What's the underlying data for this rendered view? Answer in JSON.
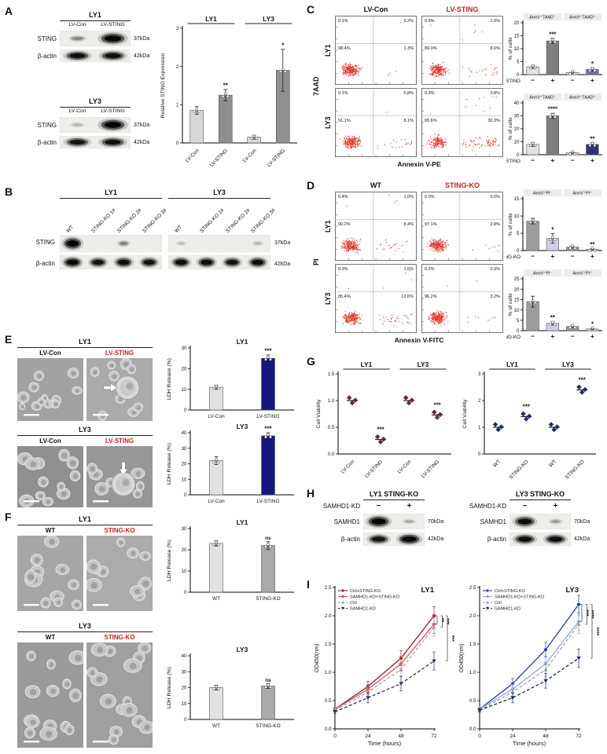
{
  "colors": {
    "accent_red": "#c32222",
    "navy_bar": "#17177d",
    "purple_bar": "#7a68b0",
    "dark_navy_bar": "#31317e",
    "flow_dot": "#ef3b30"
  },
  "A": {
    "label": "A",
    "blots": [
      {
        "title": "LY1",
        "lanes": [
          "LV-Con",
          "LV-STING"
        ],
        "rows": [
          {
            "protein": "STING",
            "kda": "37kDa",
            "intensities": [
              0.3,
              1
            ]
          },
          {
            "protein": "β-actin",
            "kda": "42kDa",
            "intensities": [
              0.9,
              0.9
            ]
          }
        ]
      },
      {
        "title": "LY3",
        "lanes": [
          "LV-Con",
          "LV-STING"
        ],
        "rows": [
          {
            "protein": "STING",
            "kda": "37kDa",
            "intensities": [
              0.15,
              1
            ]
          },
          {
            "protein": "β-actin",
            "kda": "42kDa",
            "intensities": [
              0.85,
              0.9
            ]
          }
        ]
      }
    ],
    "chart": {
      "type": "bar",
      "ylabel": "Relative STING Expression",
      "ylim": [
        0,
        3
      ],
      "yticks": [
        "0",
        "1",
        "2",
        "3"
      ],
      "group_titles": [
        "LY1",
        "LY3"
      ],
      "categories": [
        "LV-Con",
        "LV-STING",
        "LV-Con",
        "LV-STING"
      ],
      "rotate_categories": true,
      "values": [
        0.85,
        1.25,
        0.15,
        1.9
      ],
      "errors": [
        0.1,
        0.15,
        0.05,
        0.55
      ],
      "sig": [
        "",
        "**",
        "",
        "*"
      ],
      "bar_colors": [
        "#d8d8d8",
        "#8f8f8f",
        "#d8d8d8",
        "#8f8f8f"
      ],
      "dots": true
    }
  },
  "B": {
    "label": "B",
    "row_labels": [
      {
        "protein": "STING",
        "kda": "37kDa"
      },
      {
        "protein": "β-actin",
        "kda": "42kDa"
      }
    ],
    "groups": [
      {
        "title": "LY1",
        "lanes": [
          "WT",
          "STING-KO 1#",
          "STING-KO 2#",
          "STING-KO 3#"
        ],
        "sting": [
          1,
          0,
          0.3,
          0
        ],
        "actin": [
          0.95,
          0.85,
          0.9,
          0.85
        ]
      },
      {
        "title": "LY3",
        "lanes": [
          "WT",
          "STING-KO 1#",
          "STING-KO 2#",
          "STING-KO 3#"
        ],
        "sting": [
          0.12,
          0,
          0,
          0.15
        ],
        "actin": [
          0.9,
          0.9,
          0.85,
          0.9
        ]
      }
    ]
  },
  "C": {
    "label": "C",
    "columns": [
      {
        "label": "LV-Con",
        "red": false
      },
      {
        "label": "LV-STING",
        "red": true
      }
    ],
    "rows": [
      "LY1",
      "LY3"
    ],
    "yaxis": "7AAD",
    "xaxis": "Annexin V-PE",
    "plots": [
      {
        "quadrants": [
          "0.1%",
          "0.2%",
          "98.4%",
          "1.3%"
        ]
      },
      {
        "quadrants": [
          "0.5%",
          "1.9%",
          "89.0%",
          "8.6%"
        ]
      },
      {
        "quadrants": [
          "0.1%",
          "0.8%",
          "91.1%",
          "8.1%"
        ]
      },
      {
        "quadrants": [
          "0.3%",
          "3.8%",
          "65.6%",
          "30.3%"
        ]
      }
    ],
    "charts": [
      {
        "type": "bar",
        "pair_titles": [
          "AnnV⁺7AAD⁻",
          "AnnV⁺7AAD⁺"
        ],
        "ylabel": "% of cells",
        "ylim": [
          0,
          20
        ],
        "yticks": [
          "0",
          "5",
          "10",
          "15",
          "20"
        ],
        "xlabel_left": "LV-STING",
        "xsyms": [
          "−",
          "+",
          "−",
          "+"
        ],
        "values": [
          3,
          13,
          0.8,
          2
        ],
        "errors": [
          0.6,
          1,
          0.3,
          0.6
        ],
        "sig": [
          "",
          "***",
          "",
          "*"
        ],
        "bar_colors": [
          "#e2e2e2",
          "#7d7d7d",
          "#e2e2e2",
          "#7a68b0"
        ],
        "dots": true
      },
      {
        "type": "bar",
        "pair_titles": [
          "AnnV⁺7AAD⁻",
          "AnnV⁺7AAD⁺"
        ],
        "ylabel": "% of cells",
        "ylim": [
          0,
          40
        ],
        "yticks": [
          "0",
          "10",
          "20",
          "30",
          "40"
        ],
        "xlabel_left": "LV-STING",
        "xsyms": [
          "−",
          "+",
          "−",
          "+"
        ],
        "values": [
          8,
          30,
          1.5,
          8
        ],
        "errors": [
          1.5,
          2,
          0.5,
          1.2
        ],
        "sig": [
          "",
          "****",
          "",
          "**"
        ],
        "bar_colors": [
          "#e2e2e2",
          "#7d7d7d",
          "#e2e2e2",
          "#31317e"
        ],
        "dots": true
      }
    ]
  },
  "D": {
    "label": "D",
    "columns": [
      {
        "label": "WT",
        "red": false
      },
      {
        "label": "STING-KO",
        "red": true
      }
    ],
    "rows": [
      "LY1",
      "LY3"
    ],
    "yaxis": "PI",
    "xaxis": "Annexin V-FITC",
    "plots": [
      {
        "quadrants": [
          "0.4%",
          "1.0%",
          "90.2%",
          "8.4%"
        ]
      },
      {
        "quadrants": [
          "0.0%",
          "0.0%",
          "97.1%",
          "2.8%"
        ]
      },
      {
        "quadrants": [
          "0.3%",
          "1.6%",
          "85.4%",
          "12.6%"
        ]
      },
      {
        "quadrants": [
          "0.2%",
          "0.3%",
          "96.2%",
          "3.2%"
        ]
      }
    ],
    "charts": [
      {
        "type": "bar",
        "pair_titles": [
          "AnnV⁺PI⁻",
          "AnnV⁺PI⁺"
        ],
        "ylabel": "% of cells",
        "ylim": [
          0,
          15
        ],
        "yticks": [
          "0",
          "5",
          "10",
          "15"
        ],
        "xlabel_left": "STING-KO",
        "xsyms": [
          "−",
          "+",
          "−",
          "+"
        ],
        "values": [
          8.5,
          3.5,
          1,
          0.4
        ],
        "errors": [
          0.8,
          1.4,
          0.3,
          0.2
        ],
        "sig": [
          "",
          "*",
          "",
          "**"
        ],
        "bar_colors": [
          "#9c9c9c",
          "#d4cbe9",
          "#9c9c9c",
          "#d4cbe9"
        ],
        "dots": true
      },
      {
        "type": "bar",
        "pair_titles": [
          "AnnV⁺PI⁻",
          "AnnV⁺PI⁺"
        ],
        "ylabel": "% of cells",
        "ylim": [
          0,
          25
        ],
        "yticks": [
          "0",
          "5",
          "10",
          "15",
          "20",
          "25"
        ],
        "xlabel_left": "STING-KO",
        "xsyms": [
          "−",
          "+",
          "−",
          "+"
        ],
        "values": [
          14,
          3.5,
          2,
          0.8
        ],
        "errors": [
          2.6,
          0.8,
          0.6,
          0.3
        ],
        "sig": [
          "",
          "**",
          "",
          "*"
        ],
        "bar_colors": [
          "#9c9c9c",
          "#d4cbe9",
          "#9c9c9c",
          "#d4cbe9"
        ],
        "dots": true
      }
    ]
  },
  "E": {
    "label": "E",
    "groups": [
      {
        "title": "LY1",
        "images": [
          {
            "label": "LV-Con",
            "red": false,
            "bg": "#a2a2a2",
            "cells": 13,
            "rmin": 4,
            "rmax": 7
          },
          {
            "label": "LV-STING",
            "red": true,
            "bg": "#aaaaaa",
            "cells": 9,
            "rmin": 4,
            "rmax": 7,
            "big": [
              0.62,
              0.47
            ],
            "arrow": "right",
            "arrow_at": [
              0.26,
              0.47
            ]
          }
        ],
        "chart": {
          "type": "bar",
          "title": "LY1",
          "ylabel": "LDH Release (%)",
          "ylim": [
            0,
            30
          ],
          "yticks": [
            "0",
            "10",
            "20",
            "30"
          ],
          "categories": [
            "LV-Con",
            "LV-STING"
          ],
          "values": [
            11,
            25
          ],
          "errors": [
            1,
            1.6
          ],
          "sig": [
            "",
            "***"
          ],
          "bar_colors": [
            "#e2e2e2",
            "#17177d"
          ],
          "dots": true
        }
      },
      {
        "title": "LY3",
        "images": [
          {
            "label": "LV-Con",
            "red": false,
            "bg": "#8f8f8f",
            "cells": 12,
            "rmin": 5,
            "rmax": 8
          },
          {
            "label": "LV-STING",
            "red": true,
            "bg": "#979797",
            "cells": 8,
            "rmin": 5,
            "rmax": 8,
            "big": [
              0.56,
              0.62
            ],
            "arrow": "down",
            "arrow_at": [
              0.56,
              0.26
            ]
          }
        ],
        "chart": {
          "type": "bar",
          "title": "LY3",
          "ylabel": "LDH Release (%)",
          "ylim": [
            0,
            40
          ],
          "yticks": [
            "0",
            "10",
            "20",
            "30",
            "40"
          ],
          "categories": [
            "LV-Con",
            "LV-STING"
          ],
          "values": [
            22,
            38
          ],
          "errors": [
            2.5,
            2
          ],
          "sig": [
            "",
            "***"
          ],
          "bar_colors": [
            "#e2e2e2",
            "#17177d"
          ],
          "dots": true
        }
      }
    ]
  },
  "F": {
    "label": "F",
    "groups": [
      {
        "title": "LY1",
        "images": [
          {
            "label": "WT",
            "red": false,
            "bg": "#a6a6a6",
            "cells": 11,
            "rmin": 5,
            "rmax": 9
          },
          {
            "label": "STING-KO",
            "red": true,
            "bg": "#ababab",
            "cells": 11,
            "rmin": 5,
            "rmax": 9
          }
        ],
        "chart": {
          "type": "bar",
          "title": "LY1",
          "ylabel": "LDH Release (%)",
          "ylim": [
            0,
            30
          ],
          "yticks": [
            "0",
            "10",
            "20",
            "30"
          ],
          "categories": [
            "WT",
            "STING-KO"
          ],
          "values": [
            23,
            22
          ],
          "errors": [
            1.2,
            1.8
          ],
          "sig": [
            "",
            "ns"
          ],
          "bar_colors": [
            "#e2e2e2",
            "#a9a9a9"
          ],
          "dots": true
        }
      },
      {
        "title": "LY3",
        "images": [
          {
            "label": "WT",
            "red": false,
            "bg": "#9a9a9a",
            "cells": 14,
            "rmin": 6,
            "rmax": 9
          },
          {
            "label": "STING-KO",
            "red": true,
            "bg": "#9f9f9f",
            "cells": 15,
            "rmin": 6,
            "rmax": 9
          }
        ],
        "chart": {
          "type": "bar",
          "title": "LY3",
          "ylabel": "LDH Release (%)",
          "ylim": [
            0,
            40
          ],
          "yticks": [
            "0",
            "10",
            "20",
            "30",
            "40"
          ],
          "categories": [
            "WT",
            "STING-KO"
          ],
          "values": [
            20,
            21
          ],
          "errors": [
            1.5,
            1.5
          ],
          "sig": [
            "",
            "ns"
          ],
          "bar_colors": [
            "#e2e2e2",
            "#a9a9a9"
          ],
          "dots": true
        }
      }
    ]
  },
  "G": {
    "label": "G",
    "charts": [
      {
        "type": "dots",
        "ylabel": "Cell Viability",
        "ylim": [
          0,
          1.5
        ],
        "yticks": [
          "0.0",
          "0.5",
          "1.0",
          "1.5"
        ],
        "group_titles": [
          "LY1",
          "LY3"
        ],
        "categories": [
          "LV-Con",
          "LV-STING",
          "LV-Con",
          "LV-STING"
        ],
        "rotate_categories": true,
        "values": [
          1.0,
          0.27,
          1.0,
          0.73
        ],
        "sig": [
          "",
          "***",
          "",
          "***"
        ],
        "marker_color": "#6b2340"
      },
      {
        "type": "dots",
        "ylabel": "Cell Viability",
        "ylim": [
          0,
          3
        ],
        "yticks": [
          "0",
          "1",
          "2",
          "3"
        ],
        "group_titles": [
          "LY1",
          "LY3"
        ],
        "categories": [
          "WT",
          "STING-KO",
          "WT",
          "STING-KO"
        ],
        "rotate_categories": true,
        "values": [
          1.0,
          1.4,
          1.0,
          2.4
        ],
        "sig": [
          "",
          "***",
          "",
          "***"
        ],
        "marker_color": "#1c2c6e"
      }
    ]
  },
  "H": {
    "label": "H",
    "blots": [
      {
        "title": "LY1 STING-KO",
        "kd_label": "SAMHD1-KD",
        "lane_syms": [
          "−",
          "+"
        ],
        "rows": [
          {
            "protein": "SAMHD1",
            "kda": "70kDa",
            "intensities": [
              1,
              0.18
            ]
          },
          {
            "protein": "β-actin",
            "kda": "42kDa",
            "intensities": [
              0.85,
              1
            ]
          }
        ]
      },
      {
        "title": "LY3 STING-KO",
        "kd_label": "SAMHD1-KD",
        "lane_syms": [
          "−",
          "+"
        ],
        "rows": [
          {
            "protein": "SAMHD1",
            "kda": "70kDa",
            "intensities": [
              0.9,
              0.22
            ]
          },
          {
            "protein": "β-actin",
            "kda": "42kDa",
            "intensities": [
              0.9,
              0.9
            ]
          }
        ]
      }
    ]
  },
  "I": {
    "label": "I",
    "charts": [
      {
        "type": "line",
        "title": "LY1",
        "xlabel": "Time (hours)",
        "ylabel": "OD450(nm)",
        "x": [
          0,
          24,
          48,
          72
        ],
        "xticks": [
          "0",
          "24",
          "48",
          "72"
        ],
        "ylim": [
          0,
          2.5
        ],
        "yticks": [
          "0.0",
          "0.5",
          "1.0",
          "1.5",
          "2.0",
          "2.5"
        ],
        "point_errors": [
          0.03,
          0.09,
          0.13,
          0.16
        ],
        "series": [
          {
            "name": "Ctrl+STING-KO",
            "values": [
              0.35,
              0.75,
              1.25,
              2.0
            ],
            "color": "#8e1b2d",
            "marker": "circle",
            "dash": false
          },
          {
            "name": "SAMHD1-KD+STING-KO",
            "values": [
              0.35,
              0.7,
              1.15,
              1.85
            ],
            "color": "#d45468",
            "marker": "diamond",
            "dash": false
          },
          {
            "name": "Ctrl",
            "values": [
              0.33,
              0.65,
              1.05,
              1.8
            ],
            "color": "#a0a0a0",
            "marker": "triangle_up",
            "dash": true
          },
          {
            "name": "SAMHD1-KD",
            "values": [
              0.3,
              0.55,
              0.8,
              1.2
            ],
            "color": "#31315e",
            "marker": "triangle_down",
            "dash": true
          }
        ],
        "sig": [
          "**",
          "***",
          "***"
        ]
      },
      {
        "type": "line",
        "title": "LY3",
        "xlabel": "Time (hours)",
        "ylabel": "OD450(nm)",
        "x": [
          0,
          24,
          48,
          72
        ],
        "xticks": [
          "0",
          "24",
          "48",
          "72"
        ],
        "ylim": [
          0,
          2.5
        ],
        "yticks": [
          "0.0",
          "0.5",
          "1.0",
          "1.5",
          "2.0",
          "2.5"
        ],
        "point_errors": [
          0.03,
          0.09,
          0.13,
          0.16
        ],
        "series": [
          {
            "name": "Ctrl+STING-KO",
            "values": [
              0.35,
              0.8,
              1.4,
              2.2
            ],
            "color": "#1e3da0",
            "marker": "circle",
            "dash": false
          },
          {
            "name": "SAMHD1-KD+STING-KO",
            "values": [
              0.35,
              0.7,
              1.15,
              1.9
            ],
            "color": "#8fa7e0",
            "marker": "diamond",
            "dash": false
          },
          {
            "name": "Ctrl",
            "values": [
              0.33,
              0.65,
              1.05,
              1.85
            ],
            "color": "#a0a0a0",
            "marker": "triangle_up",
            "dash": true
          },
          {
            "name": "SAMHD1-KD",
            "values": [
              0.33,
              0.55,
              0.85,
              1.25
            ],
            "color": "#1c2a57",
            "marker": "triangle_down",
            "dash": true
          }
        ],
        "sig": [
          "***",
          "****",
          "****"
        ]
      }
    ]
  }
}
